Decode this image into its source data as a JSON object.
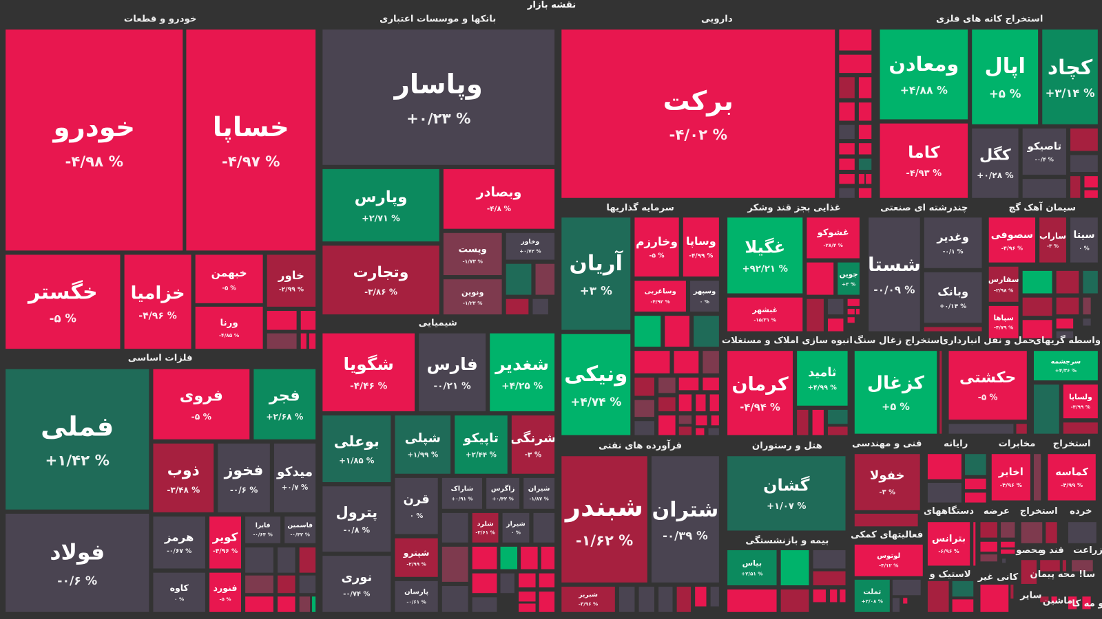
{
  "title": "نقشه بازار",
  "colors": {
    "R": "#e8174f",
    "D": "#a6203f",
    "M": "#7e3a4e",
    "G": "#4a4451",
    "K": "#1f6b58",
    "B": "#00b36b",
    "N": "#0c8a5e"
  },
  "sectors": [
    "خودرو و قطعات",
    "بانکها و موسسات اعتباری",
    "دارویی",
    "استخراج کانه های فلزی",
    "فلزات اساسی",
    "شیمیایی",
    "سرمایه گذاریها",
    "غذایی بجز قند وشکر",
    "چندرشته ای صنعتی",
    "سیمان آهک گچ",
    "انبوه سازی املاک و مستغلات",
    "استخراج زغال سنگ",
    "حمل و نقل انبارداری",
    "واسطه گریهای",
    "فرآورده های نفتی",
    "هتل و رستوران",
    "بیمه و بازنشستگی",
    "فنی و مهندسی",
    "رایانه",
    "مخابرات",
    "استخراج",
    "فعالیتهای کمکی",
    "دستگاههای",
    "عرضه",
    "استخراج",
    "خرده",
    "محصو",
    "قند و",
    "زراعت",
    "لاستیک و",
    "کانی غیر",
    "سایر",
    "سا! محه پیمان",
    "ماشین",
    "و مه کا"
  ],
  "tiles": [
    {
      "symbol": "خودرو",
      "change": "-۴/۹۸ %",
      "color": "R"
    },
    {
      "symbol": "خساپا",
      "change": "-۴/۹۷ %",
      "color": "R"
    },
    {
      "symbol": "خگستر",
      "change": "-۵ %",
      "color": "R"
    },
    {
      "symbol": "خزامیا",
      "change": "-۴/۹۶ %",
      "color": "R"
    },
    {
      "symbol": "خبهمن",
      "change": "-۵ %",
      "color": "R"
    },
    {
      "symbol": "خاور",
      "change": "-۲/۹۹ %",
      "color": "D"
    },
    {
      "symbol": "ورنا",
      "change": "-۴/۸۵ %",
      "color": "R"
    },
    {
      "symbol": "فملی",
      "change": "+۱/۴۲ %",
      "color": "K"
    },
    {
      "symbol": "فروی",
      "change": "-۵ %",
      "color": "R"
    },
    {
      "symbol": "فجر",
      "change": "+۲/۶۸ %",
      "color": "N"
    },
    {
      "symbol": "ذوب",
      "change": "-۳/۴۸ %",
      "color": "D"
    },
    {
      "symbol": "فخوز",
      "change": "-۰/۶ %",
      "color": "G"
    },
    {
      "symbol": "میدکو",
      "change": "+۰/۷ %",
      "color": "G"
    },
    {
      "symbol": "فولاد",
      "change": "-۰/۶ %",
      "color": "G"
    },
    {
      "symbol": "هرمز",
      "change": "-۰/۶۷ %",
      "color": "G"
    },
    {
      "symbol": "کویر",
      "change": "-۴/۹۶ %",
      "color": "R"
    },
    {
      "symbol": "فایرا",
      "change": "-۰/۶۴ %",
      "color": "G"
    },
    {
      "symbol": "فاسمین",
      "change": "-۰/۴۲ %",
      "color": "G"
    },
    {
      "symbol": "کاوه",
      "change": "۰ %",
      "color": "G"
    },
    {
      "symbol": "فنورد",
      "change": "-۵ %",
      "color": "R"
    },
    {
      "symbol": "وپاسار",
      "change": "+۰/۲۳ %",
      "color": "G"
    },
    {
      "symbol": "وپارس",
      "change": "+۲/۷۱ %",
      "color": "N"
    },
    {
      "symbol": "وبصادر",
      "change": "-۴/۸ %",
      "color": "R"
    },
    {
      "symbol": "وتجارت",
      "change": "-۳/۸۶ %",
      "color": "D"
    },
    {
      "symbol": "وپست",
      "change": "-۱/۷۳ %",
      "color": "M"
    },
    {
      "symbol": "وخاور",
      "change": "+۰/۷۲ %",
      "color": "G"
    },
    {
      "symbol": "ونوین",
      "change": "-۱/۲۳ %",
      "color": "M"
    },
    {
      "symbol": "شگویا",
      "change": "-۴/۴۶ %",
      "color": "R"
    },
    {
      "symbol": "فارس",
      "change": "-۰/۲۱ %",
      "color": "G"
    },
    {
      "symbol": "شغدیر",
      "change": "+۴/۲۵ %",
      "color": "B"
    },
    {
      "symbol": "بوعلی",
      "change": "+۱/۸۵ %",
      "color": "K"
    },
    {
      "symbol": "شپلی",
      "change": "+۱/۹۹ %",
      "color": "K"
    },
    {
      "symbol": "تاپیکو",
      "change": "+۲/۴۴ %",
      "color": "N"
    },
    {
      "symbol": "شرنگی",
      "change": "-۳ %",
      "color": "D"
    },
    {
      "symbol": "پترول",
      "change": "-۰/۸ %",
      "color": "G"
    },
    {
      "symbol": "قرن",
      "change": "۰ %",
      "color": "G"
    },
    {
      "symbol": "شاراک",
      "change": "+۰/۹۱ %",
      "color": "G"
    },
    {
      "symbol": "زاگرس",
      "change": "+۰/۴۲ %",
      "color": "G"
    },
    {
      "symbol": "شیران",
      "change": "-۱/۸۷ %",
      "color": "G"
    },
    {
      "symbol": "شلرد",
      "change": "-۲/۶۱ %",
      "color": "D"
    },
    {
      "symbol": "شیراز",
      "change": "۰ %",
      "color": "G"
    },
    {
      "symbol": "شپترو",
      "change": "-۲/۹۹ %",
      "color": "D"
    },
    {
      "symbol": "پارسان",
      "change": "-۰/۶۱ %",
      "color": "G"
    },
    {
      "symbol": "نوری",
      "change": "-۰/۷۴ %",
      "color": "G"
    },
    {
      "symbol": "برکت",
      "change": "-۴/۰۲ %",
      "color": "R"
    },
    {
      "symbol": "ومعادن",
      "change": "+۴/۸۸ %",
      "color": "B"
    },
    {
      "symbol": "اپال",
      "change": "+۵ %",
      "color": "B"
    },
    {
      "symbol": "کچاد",
      "change": "+۳/۱۴ %",
      "color": "N"
    },
    {
      "symbol": "کاما",
      "change": "-۴/۹۳ %",
      "color": "R"
    },
    {
      "symbol": "کگل",
      "change": "+۰/۲۸ %",
      "color": "G"
    },
    {
      "symbol": "تاصیکو",
      "change": "-۰/۴ %",
      "color": "G"
    },
    {
      "symbol": "آریان",
      "change": "+۳ %",
      "color": "K"
    },
    {
      "symbol": "ونیکی",
      "change": "+۴/۷۴ %",
      "color": "B"
    },
    {
      "symbol": "وخارزم",
      "change": "-۵ %",
      "color": "R"
    },
    {
      "symbol": "وساپا",
      "change": "-۴/۹۹ %",
      "color": "R"
    },
    {
      "symbol": "وساغربی",
      "change": "-۴/۹۲ %",
      "color": "R"
    },
    {
      "symbol": "وسپهر",
      "change": "۰ %",
      "color": "G"
    },
    {
      "symbol": "غگیلا",
      "change": "+۹۲/۲۱ %",
      "color": "B"
    },
    {
      "symbol": "غشوکو",
      "change": "-۲۸/۴ %",
      "color": "R"
    },
    {
      "symbol": "جوین",
      "change": "+۳ %",
      "color": "N"
    },
    {
      "symbol": "غبشهر",
      "change": "-۱۵/۳۱ %",
      "color": "R"
    },
    {
      "symbol": "شستا",
      "change": "-۰/۰۹ %",
      "color": "G"
    },
    {
      "symbol": "وغدیر",
      "change": "-۰/۱ %",
      "color": "G"
    },
    {
      "symbol": "وبانک",
      "change": "+۰/۱۴ %",
      "color": "G"
    },
    {
      "symbol": "سصوفی",
      "change": "-۴/۹۶ %",
      "color": "R"
    },
    {
      "symbol": "ساراب",
      "change": "-۳ %",
      "color": "D"
    },
    {
      "symbol": "سیتا",
      "change": "۰ %",
      "color": "G"
    },
    {
      "symbol": "سفارس",
      "change": "-۲/۹۸ %",
      "color": "D"
    },
    {
      "symbol": "سپاها",
      "change": "-۴/۷۹ %",
      "color": "R"
    },
    {
      "symbol": "کرمان",
      "change": "-۴/۹۴ %",
      "color": "R"
    },
    {
      "symbol": "ثامید",
      "change": "+۴/۹۹ %",
      "color": "B"
    },
    {
      "symbol": "کزغال",
      "change": "+۵ %",
      "color": "B"
    },
    {
      "symbol": "حکشتی",
      "change": "-۵ %",
      "color": "R"
    },
    {
      "symbol": "سرچشمه",
      "change": "+۴/۳۶ %",
      "color": "B"
    },
    {
      "symbol": "ولساپا",
      "change": "-۴/۹۹ %",
      "color": "R"
    },
    {
      "symbol": "شبندر",
      "change": "-۱/۶۲ %",
      "color": "D"
    },
    {
      "symbol": "شتران",
      "change": "-۰/۳۹ %",
      "color": "G"
    },
    {
      "symbol": "شبریز",
      "change": "-۳/۹۶ %",
      "color": "D"
    },
    {
      "symbol": "گشان",
      "change": "+۱/۰۷ %",
      "color": "K"
    },
    {
      "symbol": "بیاس",
      "change": "+۲/۵۱ %",
      "color": "N"
    },
    {
      "symbol": "خفولا",
      "change": "-۳ %",
      "color": "D"
    },
    {
      "symbol": "لوتوس",
      "change": "-۴/۱۲ %",
      "color": "R"
    },
    {
      "symbol": "تملت",
      "change": "+۲/۰۸ %",
      "color": "N"
    },
    {
      "symbol": "اخابر",
      "change": "-۴/۹۶ %",
      "color": "R"
    },
    {
      "symbol": "کماسه",
      "change": "-۴/۹۹ %",
      "color": "R"
    },
    {
      "symbol": "بترانس",
      "change": "-۶/۹۶ %",
      "color": "R"
    }
  ]
}
